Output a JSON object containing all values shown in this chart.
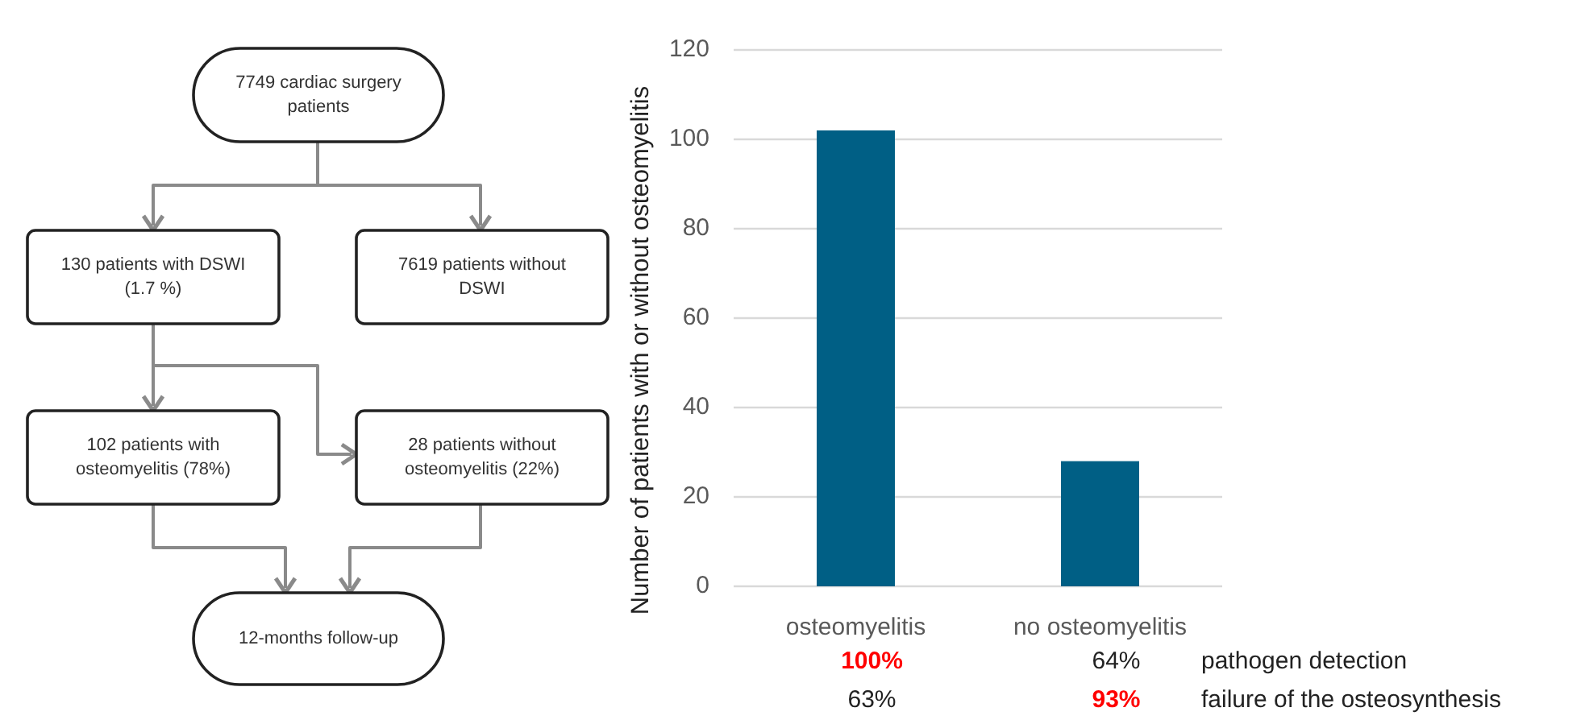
{
  "chart_data": [
    {
      "type": "other",
      "annotations": [
        "7749 cardiac surgery patients",
        "130 patients with DSWI (1.7 %)",
        "7619 patients without DSWI",
        "102 patients with osteomyelitis (78%)",
        "28 patients without osteomyelitis (22%)",
        "12-months follow-up"
      ]
    },
    {
      "type": "bar",
      "ylabel": "Number of patients with or without osteomyelitis",
      "categories": [
        "osteomyelitis",
        "no osteomyelitis"
      ],
      "values": [
        102,
        28
      ],
      "color": "#005f85",
      "ylim": [
        0,
        120
      ],
      "yticks": [
        0,
        20,
        40,
        60,
        80,
        100,
        120
      ],
      "grid": "y",
      "annotations": [
        "pathogen detection",
        "100%",
        "64%",
        "failure of the osteosynthesis",
        "63%",
        "93%"
      ]
    }
  ]
}
